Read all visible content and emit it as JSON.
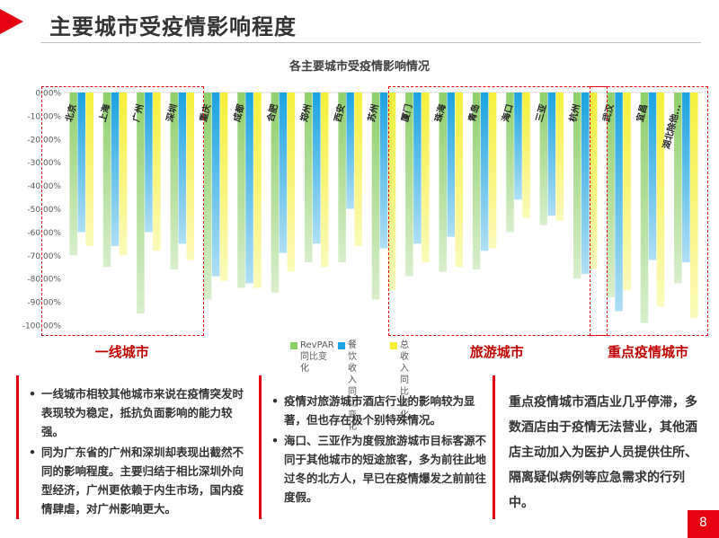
{
  "page": {
    "title": "主要城市受疫情影响程度",
    "page_number": "8",
    "accent": "#e60012"
  },
  "chart_data": {
    "type": "bar",
    "title": "各主要城市受疫情影响情况",
    "categories": [
      "北京",
      "上海",
      "广州",
      "深圳",
      "重庆",
      "成都",
      "合肥",
      "郑州",
      "西安",
      "苏州",
      "厦门",
      "珠海",
      "青岛",
      "海口",
      "三亚",
      "杭州",
      "武汉",
      "宜昌",
      "湖北除他..."
    ],
    "ylim": [
      -100,
      0
    ],
    "yticks": [
      "0.00%",
      "-10.00%",
      "-20.00%",
      "-30.00%",
      "-40.00%",
      "-50.00%",
      "-60.00%",
      "-70.00%",
      "-80.00%",
      "-90.00%",
      "-100.00%"
    ],
    "series": [
      {
        "name": "RevPAR\n同比变化",
        "color": "#8fcf6b",
        "values": [
          -70,
          -75,
          -95,
          -76,
          -89,
          -84,
          -86,
          -73,
          -73,
          -89,
          -79,
          -77,
          -76,
          -60,
          -57,
          -80,
          -88,
          -99,
          -82
        ]
      },
      {
        "name": "餐饮收入\n同比变化",
        "color": "#1aa3e0",
        "values": [
          -60,
          -66,
          -60,
          -65,
          -79,
          -82,
          -69,
          -65,
          -50,
          -67,
          -65,
          -62,
          -68,
          -46,
          -53,
          -78,
          -94,
          -72,
          -73
        ]
      },
      {
        "name": "总收入\n同比变化",
        "color": "#f5f03a",
        "values": [
          -66,
          -70,
          -68,
          -72,
          -81,
          -84,
          -77,
          -75,
          -66,
          -85,
          -73,
          -75,
          -67,
          -54,
          -55,
          -76,
          -85,
          -92,
          -97
        ]
      }
    ],
    "groups": [
      {
        "label": "一线城市",
        "start": 0,
        "end": 3
      },
      {
        "label": "旅游城市",
        "start": 10,
        "end": 15
      },
      {
        "label": "重点疫情城市",
        "start": 16,
        "end": 18
      }
    ],
    "legend": "bottom"
  },
  "panels": {
    "left": [
      "一线城市相较其他城市来说在疫情突发时表现较为稳定，抵抗负面影响的能力较强。",
      "同为广东省的广州和深圳却表现出截然不同的影响程度。主要归结于相比深圳外向型经济，广州更依赖于内生市场，国内疫情肆虐，对广州影响更大。"
    ],
    "middle": [
      "疫情对旅游城市酒店行业的影响较为显著，但也存在极个别特殊情况。",
      "海口、三亚作为度假旅游城市目标客源不同于其他城市的短途旅客，多为前往此地过冬的北方人，早已在疫情爆发之前前往度假。"
    ],
    "right": "重点疫情城市酒店业几乎停滞，多数酒店由于疫情无法营业，其他酒店主动加入为医护人员提供住所、隔离疑似病例等应急需求的行列中。"
  }
}
